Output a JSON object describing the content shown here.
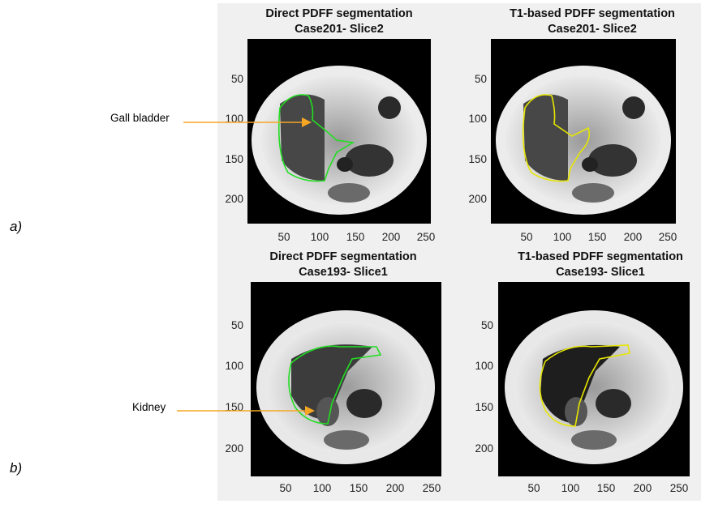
{
  "figure": {
    "row_labels": [
      "a)",
      "b)"
    ],
    "panels": [
      {
        "title_line1": "Direct PDFF segmentation",
        "title_line2": "Case201- Slice2",
        "contour_color": "#22dd22"
      },
      {
        "title_line1": "T1-based PDFF segmentation",
        "title_line2": "Case201- Slice2",
        "contour_color": "#e6e600"
      },
      {
        "title_line1": "Direct PDFF segmentation",
        "title_line2": "Case193- Slice1",
        "contour_color": "#22dd22"
      },
      {
        "title_line1": "T1-based PDFF segmentation",
        "title_line2": "Case193- Slice1",
        "contour_color": "#e6e600"
      }
    ],
    "y_ticks": [
      "50",
      "100",
      "150",
      "200"
    ],
    "x_ticks": [
      "50",
      "100",
      "150",
      "200",
      "250"
    ],
    "annotations": {
      "gall_bladder": "Gall bladder",
      "kidney": "Kidney"
    },
    "colors": {
      "arrow": "#f5a623",
      "panel_background": "#f0f0f0"
    }
  }
}
